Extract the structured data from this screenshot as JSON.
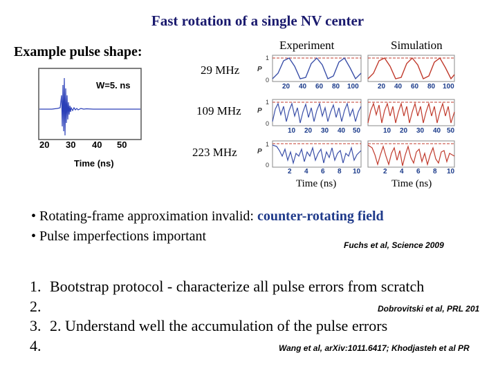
{
  "title": "Fast rotation of a single NV center",
  "example_label": "Example pulse shape:",
  "pulse_plot": {
    "annotation": "W=5. ns",
    "xticks": [
      "20",
      "30",
      "40",
      "50"
    ],
    "xlabel": "Time (ns)"
  },
  "column_headers": {
    "experiment": "Experiment",
    "simulation": "Simulation"
  },
  "frequencies": [
    "29 MHz",
    "109 MHz",
    "223 MHz"
  ],
  "panel_axis": {
    "ylabel": "P",
    "yticks": [
      "1",
      "0"
    ],
    "xticks_row1": [
      "20",
      "40",
      "60",
      "80",
      "100"
    ],
    "xticks_row2": [
      "10",
      "20",
      "30",
      "40",
      "50"
    ],
    "xticks_row3": [
      "2",
      "4",
      "6",
      "8",
      "10"
    ],
    "xlabel": "Time (ns)"
  },
  "bullets": {
    "b1_prefix": "Rotating-frame approximation invalid: ",
    "b1_highlight": "counter-rotating field",
    "b2": "Pulse imperfections important",
    "citation": "Fuchs et al, Science 2009"
  },
  "list": {
    "n1": "1.",
    "item1": "Bootstrap protocol - characterize all pulse errors from scratch",
    "n2": "2.",
    "cite2": "Dobrovitski et al, PRL 201",
    "n3": "3.",
    "item3": "2. Understand well the accumulation of the pulse errors",
    "n4": "4.",
    "cite4": "Wang et al, arXiv:1011.6417; Khodjasteh et al PR"
  },
  "colors": {
    "title": "#1a1a6e",
    "highlight": "#1f3a8a",
    "experiment_trace": "#3a4fa8",
    "simulation_trace": "#c0392b"
  }
}
